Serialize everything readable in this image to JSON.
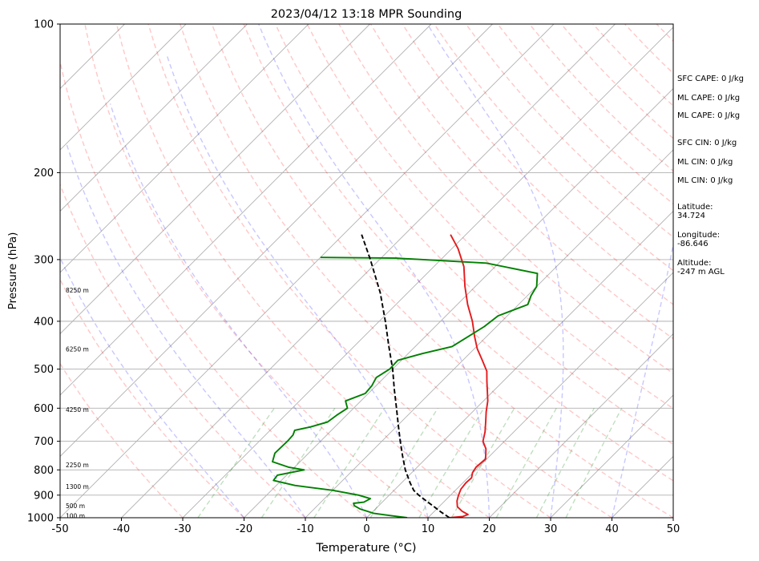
{
  "chart_data": {
    "type": "line",
    "title": "2023/04/12 13:18 MPR Sounding",
    "xlabel": "Temperature (°C)",
    "ylabel": "Pressure (hPa)",
    "xlim": [
      -50,
      50
    ],
    "ylim": [
      1000,
      100
    ],
    "y_scale": "log",
    "grid": true,
    "x_ticks": [
      -50,
      -40,
      -30,
      -20,
      -10,
      0,
      10,
      20,
      30,
      40,
      50
    ],
    "y_ticks": [
      1000,
      900,
      800,
      700,
      600,
      500,
      400,
      300,
      200,
      100
    ],
    "skew_degrees": 45,
    "height_labels": [
      {
        "p": 990,
        "text": "100 m"
      },
      {
        "p": 945,
        "text": "500 m"
      },
      {
        "p": 865,
        "text": "1300 m"
      },
      {
        "p": 782,
        "text": "2250 m"
      },
      {
        "p": 604,
        "text": "4250 m"
      },
      {
        "p": 455,
        "text": "6250 m"
      },
      {
        "p": 346,
        "text": "8250 m"
      }
    ],
    "series": [
      {
        "type": "temperature",
        "color": "#e41a1c",
        "points": [
          [
            1000,
            13.5
          ],
          [
            994,
            15.5
          ],
          [
            985,
            16.0
          ],
          [
            970,
            14.5
          ],
          [
            950,
            13.0
          ],
          [
            925,
            12.0
          ],
          [
            900,
            11.3
          ],
          [
            875,
            10.7
          ],
          [
            850,
            10.5
          ],
          [
            830,
            10.6
          ],
          [
            810,
            9.9
          ],
          [
            790,
            9.6
          ],
          [
            760,
            9.8
          ],
          [
            725,
            8.2
          ],
          [
            700,
            6.5
          ],
          [
            670,
            5.3
          ],
          [
            640,
            3.8
          ],
          [
            610,
            2.2
          ],
          [
            580,
            0.7
          ],
          [
            555,
            -0.9
          ],
          [
            530,
            -2.6
          ],
          [
            505,
            -4.3
          ],
          [
            480,
            -6.8
          ],
          [
            455,
            -9.5
          ],
          [
            430,
            -11.9
          ],
          [
            400,
            -14.8
          ],
          [
            370,
            -18.3
          ],
          [
            340,
            -21.7
          ],
          [
            310,
            -25.1
          ],
          [
            285,
            -29.0
          ],
          [
            267,
            -32.5
          ]
        ]
      },
      {
        "type": "dewpoint",
        "color": "#008000",
        "points": [
          [
            1000,
            6.6
          ],
          [
            990,
            3.5
          ],
          [
            980,
            0.5
          ],
          [
            960,
            -2.5
          ],
          [
            945,
            -4.0
          ],
          [
            935,
            -4.5
          ],
          [
            930,
            -3.0
          ],
          [
            915,
            -2.5
          ],
          [
            900,
            -5.0
          ],
          [
            880,
            -10.0
          ],
          [
            860,
            -17.0
          ],
          [
            840,
            -21.3
          ],
          [
            820,
            -21.5
          ],
          [
            800,
            -18.0
          ],
          [
            790,
            -21.0
          ],
          [
            770,
            -24.5
          ],
          [
            740,
            -25.5
          ],
          [
            700,
            -25.4
          ],
          [
            680,
            -25.5
          ],
          [
            665,
            -26.0
          ],
          [
            655,
            -24.0
          ],
          [
            640,
            -22.0
          ],
          [
            620,
            -21.6
          ],
          [
            600,
            -21.0
          ],
          [
            580,
            -22.5
          ],
          [
            560,
            -20.5
          ],
          [
            540,
            -20.7
          ],
          [
            520,
            -21.3
          ],
          [
            500,
            -20.5
          ],
          [
            480,
            -20.6
          ],
          [
            465,
            -17.7
          ],
          [
            450,
            -14.0
          ],
          [
            430,
            -13.0
          ],
          [
            410,
            -12.0
          ],
          [
            390,
            -11.5
          ],
          [
            370,
            -8.5
          ],
          [
            355,
            -9.4
          ],
          [
            340,
            -10.0
          ],
          [
            320,
            -12.0
          ],
          [
            305,
            -22.0
          ],
          [
            298,
            -37.5
          ],
          [
            297,
            -50.0
          ]
        ]
      },
      {
        "type": "parcel",
        "color": "#000000",
        "points": [
          [
            1000,
            13.5
          ],
          [
            975,
            11.3
          ],
          [
            950,
            9.2
          ],
          [
            925,
            7.0
          ],
          [
            900,
            4.8
          ],
          [
            880,
            3.2
          ],
          [
            850,
            1.4
          ],
          [
            800,
            -1.5
          ],
          [
            750,
            -4.2
          ],
          [
            700,
            -7.0
          ],
          [
            650,
            -9.9
          ],
          [
            600,
            -13.0
          ],
          [
            550,
            -16.4
          ],
          [
            500,
            -20.0
          ],
          [
            450,
            -24.3
          ],
          [
            400,
            -29.0
          ],
          [
            350,
            -34.5
          ],
          [
            300,
            -41.5
          ],
          [
            267,
            -47.0
          ]
        ]
      }
    ]
  },
  "stats": {
    "sfc_cape": "SFC CAPE: 0 J/kg",
    "ml_cape_1": "ML CAPE: 0 J/kg",
    "ml_cape_2": "ML CAPE: 0 J/kg",
    "sfc_cin": "SFC CIN: 0 J/kg",
    "ml_cin_1": "ML CIN: 0 J/kg",
    "ml_cin_2": "ML CIN: 0 J/kg",
    "latitude_label": "Latitude:",
    "latitude_value": "34.724",
    "longitude_label": "Longitude:",
    "longitude_value": "-86.646",
    "altitude_label": "Altitude:",
    "altitude_value": "-247 m AGL"
  }
}
